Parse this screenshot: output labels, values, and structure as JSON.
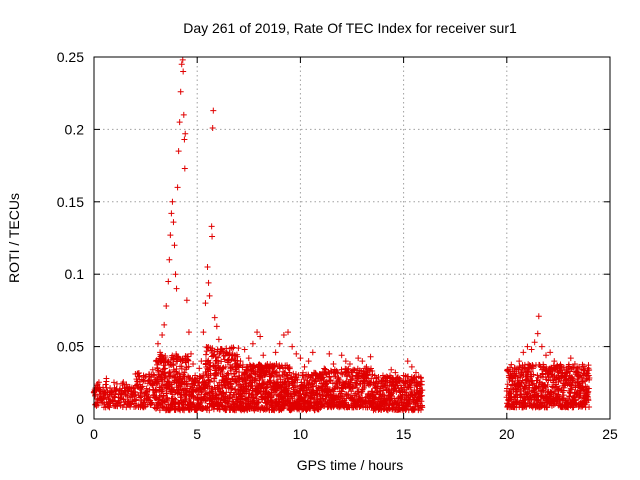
{
  "chart_data": {
    "type": "scatter",
    "title": "Day 261 of 2019, Rate Of TEC Index for receiver sur1",
    "xlabel": "GPS time / hours",
    "ylabel": "ROTI / TECUs",
    "xlim": [
      0,
      25
    ],
    "ylim": [
      0,
      0.25
    ],
    "xticks": [
      0,
      5,
      10,
      15,
      20,
      25
    ],
    "xtick_labels": [
      "0",
      "5",
      "10",
      "15",
      "20",
      "25"
    ],
    "yticks": [
      0,
      0.05,
      0.1,
      0.15,
      0.2,
      0.25
    ],
    "ytick_labels": [
      "0",
      "0.05",
      "0.1",
      "0.15",
      "0.2",
      "0.25"
    ],
    "grid": true,
    "marker": "+",
    "color": "#e00000",
    "series": [
      {
        "name": "ROTI",
        "points": [
          [
            0.05,
            0.016
          ],
          [
            0.15,
            0.021
          ],
          [
            0.3,
            0.014
          ],
          [
            0.45,
            0.019
          ],
          [
            0.6,
            0.028
          ],
          [
            0.75,
            0.017
          ],
          [
            0.9,
            0.013
          ],
          [
            1.05,
            0.02
          ],
          [
            1.2,
            0.015
          ],
          [
            1.35,
            0.018
          ],
          [
            1.5,
            0.022
          ],
          [
            1.65,
            0.012
          ],
          [
            1.8,
            0.019
          ],
          [
            1.95,
            0.016
          ],
          [
            2.1,
            0.024
          ],
          [
            2.25,
            0.018
          ],
          [
            2.4,
            0.03
          ],
          [
            2.55,
            0.021
          ],
          [
            2.7,
            0.027
          ],
          [
            2.85,
            0.034
          ],
          [
            3.0,
            0.04
          ],
          [
            3.1,
            0.052
          ],
          [
            3.2,
            0.046
          ],
          [
            3.3,
            0.058
          ],
          [
            3.4,
            0.065
          ],
          [
            3.5,
            0.078
          ],
          [
            3.6,
            0.095
          ],
          [
            3.65,
            0.11
          ],
          [
            3.7,
            0.127
          ],
          [
            3.75,
            0.142
          ],
          [
            3.8,
            0.15
          ],
          [
            3.85,
            0.136
          ],
          [
            3.9,
            0.12
          ],
          [
            3.95,
            0.1
          ],
          [
            4.0,
            0.09
          ],
          [
            4.05,
            0.16
          ],
          [
            4.1,
            0.185
          ],
          [
            4.15,
            0.205
          ],
          [
            4.2,
            0.226
          ],
          [
            4.25,
            0.245
          ],
          [
            4.3,
            0.248
          ],
          [
            4.32,
            0.24
          ],
          [
            4.35,
            0.21
          ],
          [
            4.38,
            0.193
          ],
          [
            4.4,
            0.173
          ],
          [
            4.42,
            0.197
          ],
          [
            4.5,
            0.082
          ],
          [
            4.6,
            0.06
          ],
          [
            4.7,
            0.045
          ],
          [
            4.8,
            0.038
          ],
          [
            4.9,
            0.03
          ],
          [
            5.0,
            0.028
          ],
          [
            5.1,
            0.035
          ],
          [
            5.2,
            0.04
          ],
          [
            5.3,
            0.06
          ],
          [
            5.4,
            0.08
          ],
          [
            5.5,
            0.105
          ],
          [
            5.55,
            0.094
          ],
          [
            5.6,
            0.085
          ],
          [
            5.7,
            0.133
          ],
          [
            5.72,
            0.126
          ],
          [
            5.75,
            0.201
          ],
          [
            5.78,
            0.213
          ],
          [
            5.85,
            0.07
          ],
          [
            5.95,
            0.064
          ],
          [
            6.05,
            0.055
          ],
          [
            6.2,
            0.048
          ],
          [
            6.35,
            0.044
          ],
          [
            6.5,
            0.04
          ],
          [
            6.7,
            0.036
          ],
          [
            6.9,
            0.033
          ],
          [
            7.1,
            0.04
          ],
          [
            7.3,
            0.048
          ],
          [
            7.5,
            0.042
          ],
          [
            7.7,
            0.052
          ],
          [
            7.9,
            0.06
          ],
          [
            8.05,
            0.057
          ],
          [
            8.2,
            0.044
          ],
          [
            8.4,
            0.038
          ],
          [
            8.6,
            0.03
          ],
          [
            8.8,
            0.046
          ],
          [
            9.0,
            0.052
          ],
          [
            9.2,
            0.058
          ],
          [
            9.4,
            0.06
          ],
          [
            9.6,
            0.05
          ],
          [
            9.8,
            0.045
          ],
          [
            10.0,
            0.042
          ],
          [
            10.2,
            0.036
          ],
          [
            10.4,
            0.04
          ],
          [
            10.6,
            0.046
          ],
          [
            10.8,
            0.03
          ],
          [
            11.0,
            0.022
          ],
          [
            11.2,
            0.025
          ],
          [
            11.4,
            0.045
          ],
          [
            11.6,
            0.038
          ],
          [
            11.8,
            0.032
          ],
          [
            12.0,
            0.044
          ],
          [
            12.2,
            0.04
          ],
          [
            12.4,
            0.038
          ],
          [
            12.6,
            0.034
          ],
          [
            12.8,
            0.042
          ],
          [
            13.0,
            0.04
          ],
          [
            13.2,
            0.036
          ],
          [
            13.4,
            0.043
          ],
          [
            13.6,
            0.03
          ],
          [
            13.8,
            0.026
          ],
          [
            14.0,
            0.03
          ],
          [
            14.2,
            0.028
          ],
          [
            14.4,
            0.034
          ],
          [
            14.6,
            0.032
          ],
          [
            14.8,
            0.026
          ],
          [
            15.0,
            0.03
          ],
          [
            15.2,
            0.04
          ],
          [
            15.4,
            0.036
          ],
          [
            15.6,
            0.032
          ],
          [
            15.8,
            0.024
          ],
          [
            15.9,
            0.008
          ],
          [
            20.05,
            0.024
          ],
          [
            20.2,
            0.03
          ],
          [
            20.4,
            0.035
          ],
          [
            20.6,
            0.04
          ],
          [
            20.8,
            0.046
          ],
          [
            21.0,
            0.05
          ],
          [
            21.2,
            0.048
          ],
          [
            21.35,
            0.053
          ],
          [
            21.5,
            0.059
          ],
          [
            21.55,
            0.071
          ],
          [
            21.7,
            0.05
          ],
          [
            21.9,
            0.044
          ],
          [
            22.1,
            0.046
          ],
          [
            22.3,
            0.04
          ],
          [
            22.5,
            0.032
          ],
          [
            22.7,
            0.03
          ],
          [
            22.9,
            0.034
          ],
          [
            23.1,
            0.042
          ],
          [
            23.3,
            0.038
          ],
          [
            23.5,
            0.036
          ],
          [
            23.7,
            0.034
          ],
          [
            23.85,
            0.03
          ]
        ],
        "bands": [
          {
            "x": [
              0,
              2.0
            ],
            "y": [
              0.008,
              0.026
            ],
            "step": 0.04
          },
          {
            "x": [
              2.0,
              3.0
            ],
            "y": [
              0.008,
              0.032
            ],
            "step": 0.03
          },
          {
            "x": [
              3.0,
              4.6
            ],
            "y": [
              0.006,
              0.045
            ],
            "step": 0.015
          },
          {
            "x": [
              4.6,
              5.4
            ],
            "y": [
              0.006,
              0.03
            ],
            "step": 0.02
          },
          {
            "x": [
              5.4,
              7.0
            ],
            "y": [
              0.006,
              0.05
            ],
            "step": 0.015
          },
          {
            "x": [
              7.0,
              9.5
            ],
            "y": [
              0.006,
              0.038
            ],
            "step": 0.015
          },
          {
            "x": [
              9.5,
              11.0
            ],
            "y": [
              0.006,
              0.032
            ],
            "step": 0.018
          },
          {
            "x": [
              11.0,
              13.5
            ],
            "y": [
              0.008,
              0.035
            ],
            "step": 0.02
          },
          {
            "x": [
              13.5,
              15.9
            ],
            "y": [
              0.006,
              0.03
            ],
            "step": 0.02
          },
          {
            "x": [
              20.0,
              24.0
            ],
            "y": [
              0.008,
              0.038
            ],
            "step": 0.018
          }
        ]
      }
    ]
  }
}
